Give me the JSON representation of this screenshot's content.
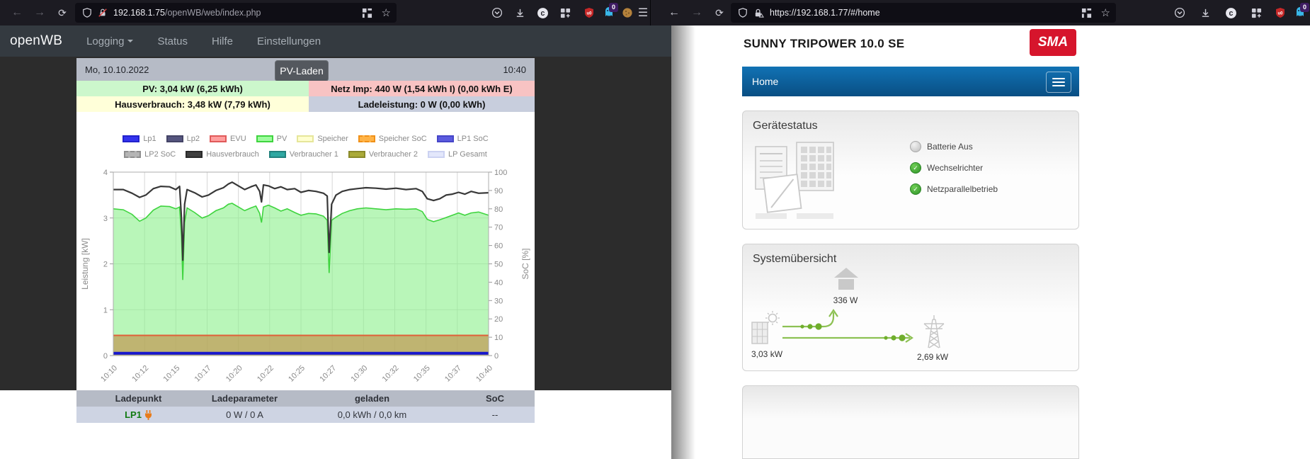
{
  "browser_left": {
    "url_host": "192.168.1.75",
    "url_path": "/openWB/web/index.php",
    "ghostery_badge": "0"
  },
  "browser_right": {
    "url": "https://192.168.1.77/#/home",
    "ghostery_badge": "0"
  },
  "openwb": {
    "navbar": {
      "brand": "openWB",
      "menu": [
        {
          "label": "Logging"
        },
        {
          "label": "Status"
        },
        {
          "label": "Hilfe"
        },
        {
          "label": "Einstellungen"
        }
      ]
    },
    "header": {
      "date": "Mo, 10.10.2022",
      "time": "10:40",
      "tooltip": "PV-Laden"
    },
    "info": {
      "pv": "PV: 3,04 kW (6,25 kWh)",
      "netz": "Netz Imp: 440 W (1,54 kWh I) (0,00 kWh E)",
      "haus": "Hausverbrauch: 3,48 kW (7,79 kWh)",
      "lade": "Ladeleistung: 0 W (0,00 kWh)"
    },
    "table": {
      "headers": [
        "Ladepunkt",
        "Ladeparameter",
        "geladen",
        "SoC"
      ],
      "row": {
        "name": "LP1",
        "params": "0 W / 0 A",
        "charged": "0,0 kWh / 0,0 km",
        "soc": "--"
      }
    }
  },
  "chart_data": {
    "type": "area",
    "title": "",
    "x_ticks": [
      "10:10",
      "10:12",
      "10:15",
      "10:17",
      "10:20",
      "10:22",
      "10:25",
      "10:27",
      "10:30",
      "10:32",
      "10:35",
      "10:37",
      "10:40"
    ],
    "x_range_minutes": [
      0,
      30
    ],
    "ylabel_left": "Leistung [kW]",
    "ylim_left": [
      0,
      4
    ],
    "yticks_left": [
      0,
      1,
      2,
      3,
      4
    ],
    "ylabel_right": "SoC [%]",
    "ylim_right": [
      0,
      100
    ],
    "yticks_right": [
      0,
      10,
      20,
      30,
      40,
      50,
      60,
      70,
      80,
      90,
      100
    ],
    "grid": true,
    "legend_position": "top",
    "legend": [
      {
        "label": "Lp1",
        "fill": "#3333ee",
        "border": "#2222cc",
        "dashed": false
      },
      {
        "label": "Lp2",
        "fill": "#55557f",
        "border": "#444466",
        "dashed": false
      },
      {
        "label": "EVU",
        "fill": "#ff9e9e",
        "border": "#e05a5a",
        "dashed": false
      },
      {
        "label": "PV",
        "fill": "#9dfc9d",
        "border": "#3fd43f",
        "dashed": false
      },
      {
        "label": "Speicher",
        "fill": "#ffffcf",
        "border": "#e6e69a",
        "dashed": false
      },
      {
        "label": "Speicher SoC",
        "fill": "#ffb347",
        "border": "#f09018",
        "dashed": true
      },
      {
        "label": "LP1 SoC",
        "fill": "#5b5bdf",
        "border": "#4646c8",
        "dashed": false
      },
      {
        "label": "LP2 SoC",
        "fill": "#b5b5b5",
        "border": "#8f8f8f",
        "dashed": true
      },
      {
        "label": "Hausverbrauch",
        "fill": "#3f3f3f",
        "border": "#2a2a2a",
        "dashed": false
      },
      {
        "label": "Verbraucher 1",
        "fill": "#2fa8a2",
        "border": "#22827e",
        "dashed": false
      },
      {
        "label": "Verbraucher 2",
        "fill": "#aaaa38",
        "border": "#8a8a2a",
        "dashed": false
      },
      {
        "label": "LP Gesamt",
        "fill": "#e3e7fb",
        "border": "#ccd2f2",
        "dashed": false
      }
    ],
    "series": [
      {
        "name": "PV",
        "kind": "area",
        "fill": "#8ef08e",
        "line": "#3fd43f",
        "points": [
          [
            0,
            3.2
          ],
          [
            0.8,
            3.18
          ],
          [
            1.5,
            3.08
          ],
          [
            2.1,
            2.93
          ],
          [
            2.6,
            3.0
          ],
          [
            3.2,
            3.17
          ],
          [
            3.8,
            3.26
          ],
          [
            4.5,
            3.25
          ],
          [
            5.0,
            3.2
          ],
          [
            5.3,
            3.24
          ],
          [
            5.45,
            2.6
          ],
          [
            5.55,
            1.65
          ],
          [
            5.7,
            2.9
          ],
          [
            5.9,
            3.22
          ],
          [
            6.5,
            3.12
          ],
          [
            7.1,
            3.0
          ],
          [
            7.6,
            3.05
          ],
          [
            8.2,
            3.16
          ],
          [
            8.8,
            3.22
          ],
          [
            9.2,
            3.3
          ],
          [
            9.5,
            3.32
          ],
          [
            10.0,
            3.24
          ],
          [
            10.5,
            3.16
          ],
          [
            11.0,
            3.22
          ],
          [
            11.4,
            3.26
          ],
          [
            11.7,
            3.1
          ],
          [
            11.85,
            2.9
          ],
          [
            12.0,
            3.24
          ],
          [
            12.4,
            3.28
          ],
          [
            12.9,
            3.22
          ],
          [
            13.4,
            3.15
          ],
          [
            13.9,
            3.2
          ],
          [
            14.5,
            3.12
          ],
          [
            15.0,
            3.06
          ],
          [
            15.6,
            3.1
          ],
          [
            16.2,
            3.09
          ],
          [
            16.8,
            3.04
          ],
          [
            17.1,
            2.95
          ],
          [
            17.25,
            1.8
          ],
          [
            17.45,
            2.95
          ],
          [
            17.8,
            3.02
          ],
          [
            18.3,
            3.1
          ],
          [
            18.9,
            3.16
          ],
          [
            19.5,
            3.2
          ],
          [
            20.2,
            3.22
          ],
          [
            21.0,
            3.2
          ],
          [
            21.8,
            3.18
          ],
          [
            22.6,
            3.2
          ],
          [
            23.4,
            3.19
          ],
          [
            24.2,
            3.2
          ],
          [
            24.7,
            3.14
          ],
          [
            25.1,
            2.97
          ],
          [
            25.6,
            2.92
          ],
          [
            26.1,
            2.96
          ],
          [
            26.6,
            3.01
          ],
          [
            27.1,
            3.06
          ],
          [
            27.6,
            3.11
          ],
          [
            28.1,
            3.06
          ],
          [
            28.6,
            3.11
          ],
          [
            29.2,
            3.13
          ],
          [
            30,
            3.06
          ]
        ]
      },
      {
        "name": "EVU",
        "kind": "area-const",
        "fill": "#c19a55",
        "line": "#e05f38",
        "value": 0.44
      },
      {
        "name": "Hausverbrauch",
        "kind": "line",
        "line": "#383838",
        "points": [
          [
            0,
            3.62
          ],
          [
            0.8,
            3.62
          ],
          [
            1.5,
            3.54
          ],
          [
            2.1,
            3.45
          ],
          [
            2.6,
            3.5
          ],
          [
            3.2,
            3.64
          ],
          [
            3.8,
            3.69
          ],
          [
            4.5,
            3.68
          ],
          [
            5.0,
            3.62
          ],
          [
            5.3,
            3.69
          ],
          [
            5.45,
            3.0
          ],
          [
            5.55,
            2.08
          ],
          [
            5.7,
            3.3
          ],
          [
            5.9,
            3.62
          ],
          [
            6.5,
            3.55
          ],
          [
            7.1,
            3.46
          ],
          [
            7.6,
            3.5
          ],
          [
            8.2,
            3.6
          ],
          [
            8.8,
            3.66
          ],
          [
            9.2,
            3.74
          ],
          [
            9.5,
            3.78
          ],
          [
            10.0,
            3.7
          ],
          [
            10.5,
            3.62
          ],
          [
            11.0,
            3.68
          ],
          [
            11.4,
            3.72
          ],
          [
            11.7,
            3.58
          ],
          [
            11.85,
            3.35
          ],
          [
            12.0,
            3.72
          ],
          [
            12.4,
            3.7
          ],
          [
            12.9,
            3.64
          ],
          [
            13.4,
            3.68
          ],
          [
            13.9,
            3.62
          ],
          [
            14.5,
            3.64
          ],
          [
            15.0,
            3.56
          ],
          [
            15.6,
            3.6
          ],
          [
            16.2,
            3.58
          ],
          [
            16.8,
            3.54
          ],
          [
            17.1,
            3.48
          ],
          [
            17.25,
            2.25
          ],
          [
            17.45,
            3.3
          ],
          [
            17.8,
            3.5
          ],
          [
            18.3,
            3.58
          ],
          [
            18.9,
            3.62
          ],
          [
            19.5,
            3.64
          ],
          [
            20.2,
            3.66
          ],
          [
            21.0,
            3.65
          ],
          [
            21.8,
            3.63
          ],
          [
            22.6,
            3.65
          ],
          [
            23.4,
            3.62
          ],
          [
            24.2,
            3.64
          ],
          [
            24.7,
            3.58
          ],
          [
            25.1,
            3.42
          ],
          [
            25.6,
            3.38
          ],
          [
            26.1,
            3.42
          ],
          [
            26.6,
            3.5
          ],
          [
            27.1,
            3.52
          ],
          [
            27.6,
            3.56
          ],
          [
            28.1,
            3.52
          ],
          [
            28.6,
            3.58
          ],
          [
            29.2,
            3.54
          ],
          [
            30,
            3.55
          ]
        ]
      },
      {
        "name": "Lp1",
        "kind": "line-const",
        "line": "#1717cd",
        "width": 4,
        "value": 0.05
      }
    ]
  },
  "sma": {
    "title": "SUNNY TRIPOWER 10.0 SE",
    "logo_text": "SMA",
    "nav_home": "Home",
    "device_status": {
      "title": "Gerätestatus",
      "items": [
        {
          "label": "Batterie Aus",
          "state": "off"
        },
        {
          "label": "Wechselrichter",
          "state": "ok"
        },
        {
          "label": "Netzparallelbetrieb",
          "state": "ok"
        }
      ]
    },
    "system_overview": {
      "title": "Systemübersicht",
      "house_power": "336 W",
      "pv_power": "3,03 kW",
      "grid_power": "2,69 kW"
    }
  }
}
